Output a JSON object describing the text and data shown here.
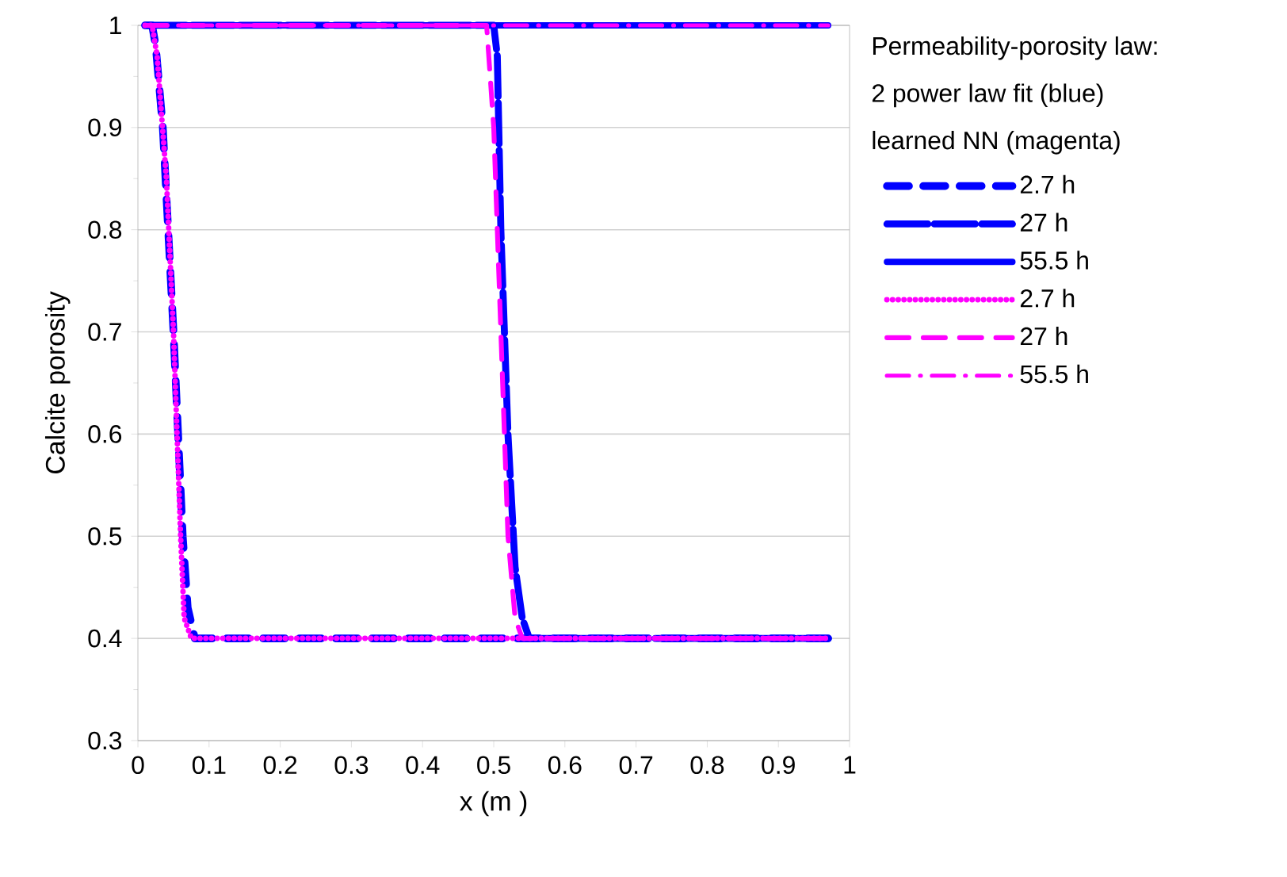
{
  "chart_data": {
    "type": "line",
    "xlabel": "x (m )",
    "ylabel": "Calcite porosity",
    "legend_title": "Permeability-porosity law:",
    "annotations": [
      "2 power law fit (blue)",
      "learned NN (magenta)"
    ],
    "xlim": [
      0,
      1
    ],
    "ylim": [
      0.3,
      1
    ],
    "xticks": [
      0,
      0.1,
      0.2,
      0.3,
      0.4,
      0.5,
      0.6,
      0.7,
      0.8,
      0.9,
      1
    ],
    "yticks": [
      0.3,
      0.4,
      0.5,
      0.6,
      0.7,
      0.8,
      0.9,
      1
    ],
    "grid": "y",
    "legend": "right",
    "marker": "none",
    "series": [
      {
        "name": "2.7 h",
        "color": "#0000ff",
        "line_style": "dashed",
        "x": [
          0.01,
          0.02,
          0.025,
          0.035,
          0.05,
          0.063,
          0.07,
          0.08,
          0.97
        ],
        "values": [
          1,
          1,
          0.98,
          0.9,
          0.7,
          0.5,
          0.43,
          0.4,
          0.4
        ]
      },
      {
        "name": "27 h",
        "color": "#0000ff",
        "line_style": "longdash",
        "x": [
          0.01,
          0.5,
          0.505,
          0.51,
          0.52,
          0.53,
          0.54,
          0.55,
          0.97
        ],
        "values": [
          1,
          1,
          0.97,
          0.8,
          0.6,
          0.47,
          0.42,
          0.4,
          0.4
        ]
      },
      {
        "name": "55.5 h",
        "color": "#0000ff",
        "line_style": "solid",
        "x": [
          0.01,
          0.97
        ],
        "values": [
          1,
          1
        ]
      },
      {
        "name": "2.7 h",
        "color": "#ff00ff",
        "line_style": "dotted",
        "x": [
          0.01,
          0.02,
          0.027,
          0.04,
          0.05,
          0.06,
          0.065,
          0.075,
          0.97
        ],
        "values": [
          1,
          1,
          0.97,
          0.85,
          0.7,
          0.5,
          0.42,
          0.4,
          0.4
        ]
      },
      {
        "name": "27 h",
        "color": "#ff00ff",
        "line_style": "dashed",
        "x": [
          0.01,
          0.49,
          0.5,
          0.51,
          0.52,
          0.53,
          0.54,
          0.97
        ],
        "values": [
          1,
          1,
          0.9,
          0.7,
          0.5,
          0.42,
          0.4,
          0.4
        ]
      },
      {
        "name": "55.5 h",
        "color": "#ff00ff",
        "line_style": "dashdot",
        "x": [
          0.01,
          0.97
        ],
        "values": [
          1,
          1
        ]
      }
    ]
  }
}
